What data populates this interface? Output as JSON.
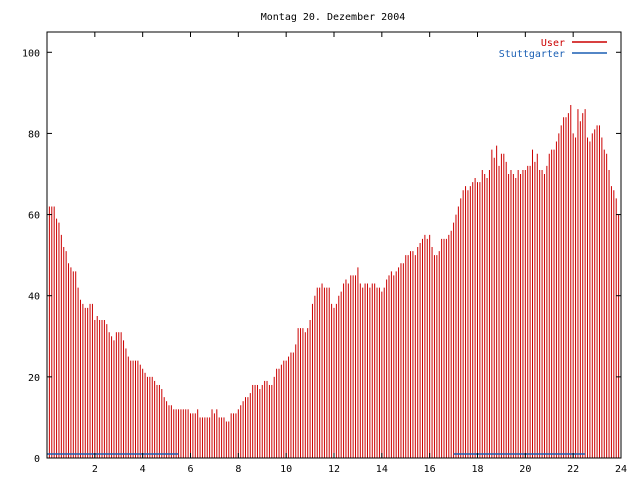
{
  "chart_data": {
    "type": "bar",
    "title": "Montag 20. Dezember 2004",
    "xlabel": "",
    "ylabel": "",
    "xlim": [
      0,
      24
    ],
    "ylim": [
      0,
      105
    ],
    "x_ticks": [
      2,
      4,
      6,
      8,
      10,
      12,
      14,
      16,
      18,
      20,
      22,
      24
    ],
    "y_ticks": [
      0,
      20,
      40,
      60,
      80,
      100
    ],
    "grid": false,
    "legend_position": "top-right",
    "series": [
      {
        "name": "User",
        "color": "#cc0000",
        "x": [
          0.0,
          0.1,
          0.2,
          0.3,
          0.4,
          0.5,
          0.6,
          0.7,
          0.8,
          0.9,
          1.0,
          1.1,
          1.2,
          1.3,
          1.4,
          1.5,
          1.6,
          1.7,
          1.8,
          1.9,
          2.0,
          2.1,
          2.2,
          2.3,
          2.4,
          2.5,
          2.6,
          2.7,
          2.8,
          2.9,
          3.0,
          3.1,
          3.2,
          3.3,
          3.4,
          3.5,
          3.6,
          3.7,
          3.8,
          3.9,
          4.0,
          4.1,
          4.2,
          4.3,
          4.4,
          4.5,
          4.6,
          4.7,
          4.8,
          4.9,
          5.0,
          5.1,
          5.2,
          5.3,
          5.4,
          5.5,
          5.6,
          5.7,
          5.8,
          5.9,
          6.0,
          6.1,
          6.2,
          6.3,
          6.4,
          6.5,
          6.6,
          6.7,
          6.8,
          6.9,
          7.0,
          7.1,
          7.2,
          7.3,
          7.4,
          7.5,
          7.6,
          7.7,
          7.8,
          7.9,
          8.0,
          8.1,
          8.2,
          8.3,
          8.4,
          8.5,
          8.6,
          8.7,
          8.8,
          8.9,
          9.0,
          9.1,
          9.2,
          9.3,
          9.4,
          9.5,
          9.6,
          9.7,
          9.8,
          9.9,
          10.0,
          10.1,
          10.2,
          10.3,
          10.4,
          10.5,
          10.6,
          10.7,
          10.8,
          10.9,
          11.0,
          11.1,
          11.2,
          11.3,
          11.4,
          11.5,
          11.6,
          11.7,
          11.8,
          11.9,
          12.0,
          12.1,
          12.2,
          12.3,
          12.4,
          12.5,
          12.6,
          12.7,
          12.8,
          12.9,
          13.0,
          13.1,
          13.2,
          13.3,
          13.4,
          13.5,
          13.6,
          13.7,
          13.8,
          13.9,
          14.0,
          14.1,
          14.2,
          14.3,
          14.4,
          14.5,
          14.6,
          14.7,
          14.8,
          14.9,
          15.0,
          15.1,
          15.2,
          15.3,
          15.4,
          15.5,
          15.6,
          15.7,
          15.8,
          15.9,
          16.0,
          16.1,
          16.2,
          16.3,
          16.4,
          16.5,
          16.6,
          16.7,
          16.8,
          16.9,
          17.0,
          17.1,
          17.2,
          17.3,
          17.4,
          17.5,
          17.6,
          17.7,
          17.8,
          17.9,
          18.0,
          18.1,
          18.2,
          18.3,
          18.4,
          18.5,
          18.6,
          18.7,
          18.8,
          18.9,
          19.0,
          19.1,
          19.2,
          19.3,
          19.4,
          19.5,
          19.6,
          19.7,
          19.8,
          19.9,
          20.0,
          20.1,
          20.2,
          20.3,
          20.4,
          20.5,
          20.6,
          20.7,
          20.8,
          20.9,
          21.0,
          21.1,
          21.2,
          21.3,
          21.4,
          21.5,
          21.6,
          21.7,
          21.8,
          21.9,
          22.0,
          22.1,
          22.2,
          22.3,
          22.4,
          22.5,
          22.6,
          22.7,
          22.8,
          22.9,
          23.0,
          23.1,
          23.2,
          23.3,
          23.4,
          23.5,
          23.6,
          23.7,
          23.8,
          23.9,
          24.0
        ],
        "values": [
          67,
          62,
          62,
          62,
          59,
          58,
          55,
          52,
          51,
          48,
          47,
          46,
          46,
          42,
          39,
          38,
          37,
          37,
          38,
          38,
          34,
          35,
          34,
          34,
          34,
          33,
          31,
          30,
          29,
          31,
          31,
          31,
          29,
          27,
          25,
          24,
          24,
          24,
          24,
          23,
          22,
          21,
          20,
          20,
          20,
          19,
          18,
          18,
          17,
          15,
          14,
          13,
          13,
          12,
          12,
          12,
          12,
          12,
          12,
          12,
          11,
          11,
          11,
          12,
          10,
          10,
          10,
          10,
          10,
          12,
          11,
          12,
          10,
          10,
          10,
          9,
          9,
          11,
          11,
          11,
          12,
          13,
          14,
          15,
          15,
          16,
          18,
          18,
          18,
          17,
          18,
          19,
          19,
          18,
          18,
          20,
          22,
          22,
          23,
          24,
          24,
          25,
          26,
          26,
          28,
          32,
          32,
          32,
          31,
          32,
          34,
          38,
          40,
          42,
          42,
          43,
          42,
          42,
          42,
          38,
          37,
          38,
          40,
          41,
          43,
          44,
          43,
          45,
          45,
          45,
          47,
          43,
          42,
          43,
          43,
          42,
          43,
          43,
          42,
          42,
          41,
          42,
          44,
          45,
          46,
          45,
          46,
          47,
          48,
          48,
          50,
          50,
          51,
          51,
          50,
          52,
          53,
          54,
          55,
          54,
          55,
          52,
          50,
          50,
          51,
          54,
          54,
          54,
          55,
          56,
          58,
          60,
          62,
          64,
          66,
          67,
          66,
          67,
          68,
          69,
          68,
          68,
          71,
          70,
          69,
          71,
          76,
          74,
          77,
          72,
          75,
          75,
          73,
          70,
          71,
          70,
          69,
          71,
          70,
          71,
          71,
          72,
          72,
          76,
          73,
          75,
          71,
          71,
          70,
          72,
          75,
          76,
          76,
          78,
          80,
          82,
          84,
          84,
          85,
          87,
          80,
          79,
          86,
          83,
          85,
          86,
          79,
          78,
          80,
          81,
          82,
          82,
          79,
          76,
          75,
          71,
          67,
          66,
          64,
          60,
          56
        ]
      },
      {
        "name": "Stuttgarter",
        "color": "#1a5fb4",
        "x": [
          0,
          5.5,
          17,
          22.5
        ],
        "values": [
          1,
          1,
          1,
          1
        ]
      }
    ]
  }
}
